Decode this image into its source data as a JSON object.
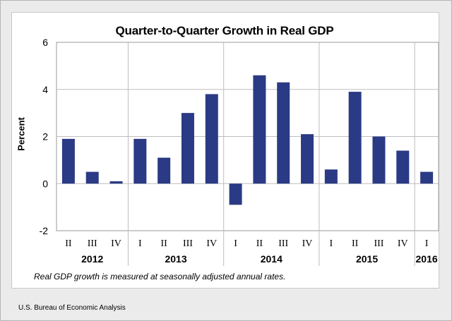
{
  "chart_data": {
    "type": "bar",
    "title": "Quarter-to-Quarter Growth in Real GDP",
    "ylabel": "Percent",
    "xlabel": "",
    "ylim": [
      -2,
      6
    ],
    "yticks": [
      "6",
      "4",
      "2",
      "0",
      "-2"
    ],
    "grid": true,
    "bar_color": "#2b3a85",
    "categories": [
      "II",
      "III",
      "IV",
      "I",
      "II",
      "III",
      "IV",
      "I",
      "II",
      "III",
      "IV",
      "I",
      "II",
      "III",
      "IV",
      "I"
    ],
    "values": [
      1.9,
      0.5,
      0.1,
      1.9,
      1.1,
      3.0,
      3.8,
      -0.9,
      4.6,
      4.3,
      2.1,
      0.6,
      3.9,
      2.0,
      1.4,
      0.5
    ],
    "years": [
      {
        "label": "2012",
        "start": 0,
        "end": 2
      },
      {
        "label": "2013",
        "start": 3,
        "end": 6
      },
      {
        "label": "2014",
        "start": 7,
        "end": 10
      },
      {
        "label": "2015",
        "start": 11,
        "end": 14
      },
      {
        "label": "2016",
        "start": 15,
        "end": 15
      }
    ]
  },
  "note": "Real GDP growth is measured at seasonally adjusted annual rates.",
  "source": "U.S. Bureau of Economic Analysis"
}
